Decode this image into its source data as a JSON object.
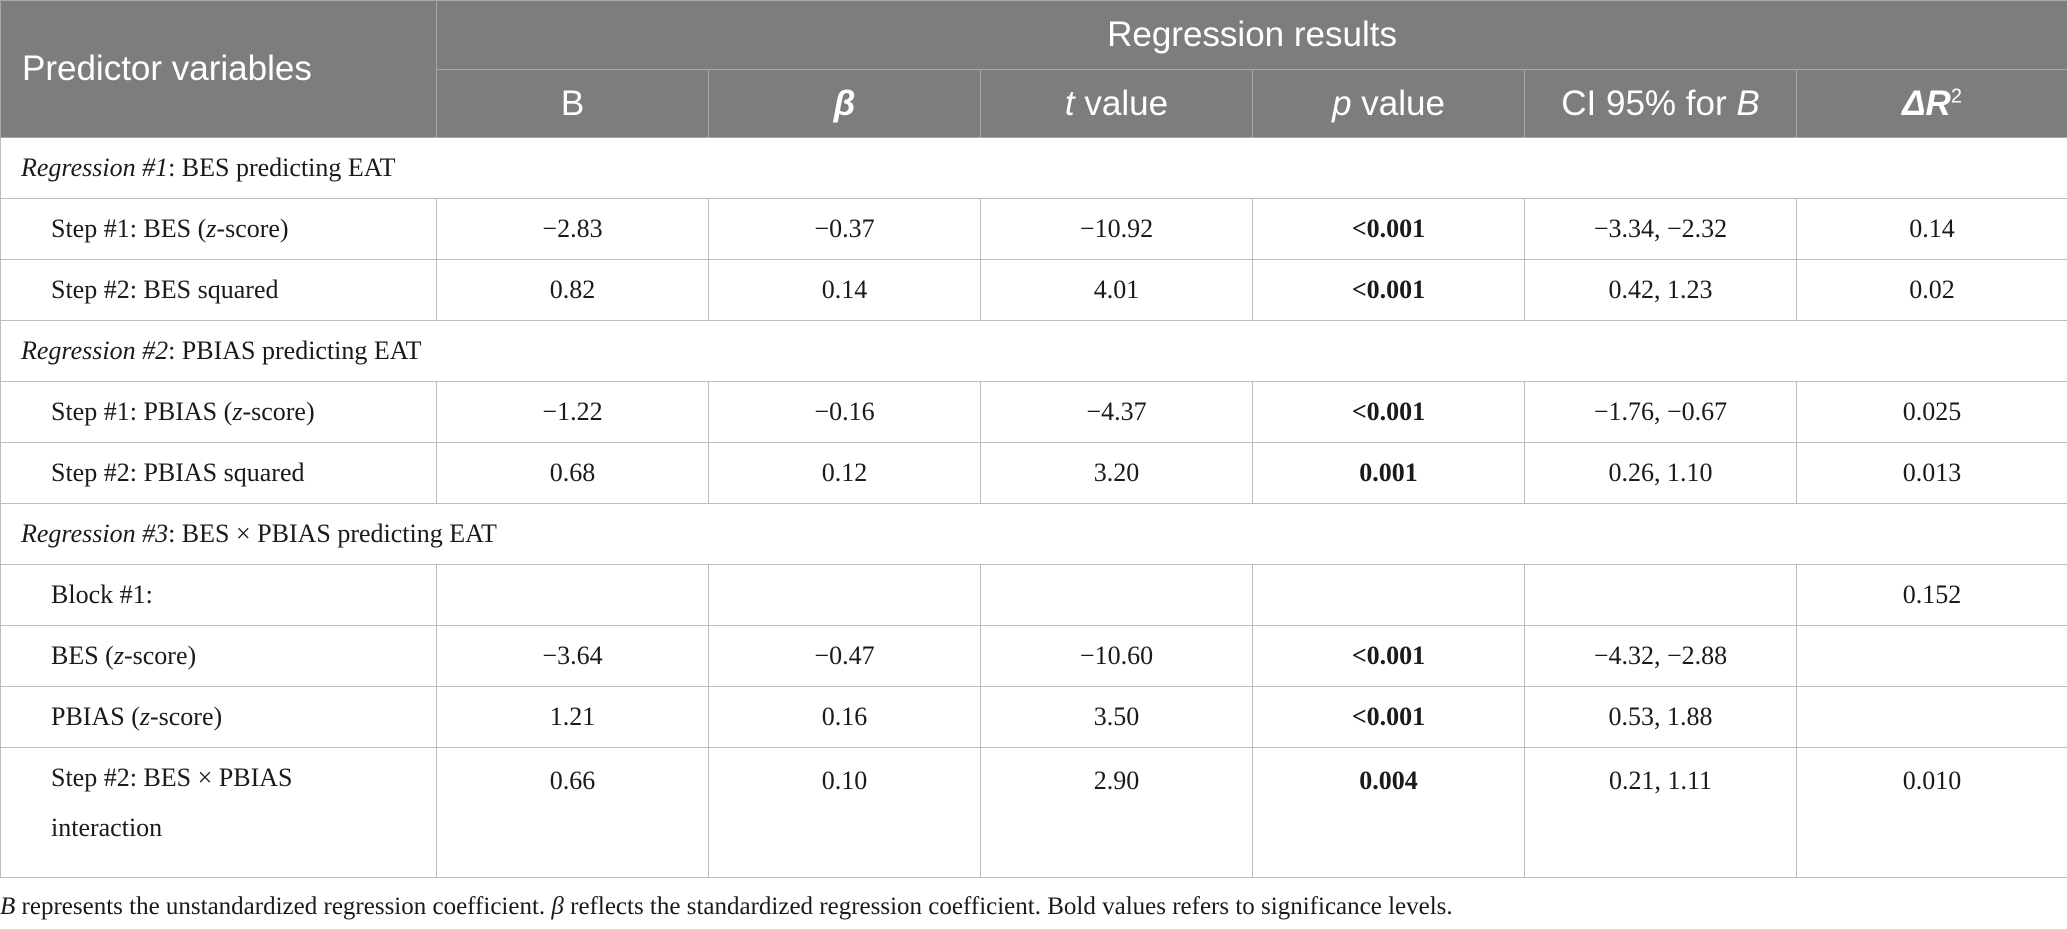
{
  "header": {
    "predictor_label": "Predictor variables",
    "group_label": "Regression results",
    "columns": {
      "b": "B",
      "beta": "β",
      "t_italic": "t",
      "t_rest": " value",
      "p_italic": "p",
      "p_rest": " value",
      "ci_prefix": "CI 95% for ",
      "ci_italic": "B",
      "dr2": "ΔR",
      "dr2_sup": "2"
    }
  },
  "regressions": [
    {
      "title_italic": "Regression #1",
      "title_rest": ": BES predicting EAT",
      "rows": [
        {
          "pre": "Step #1: BES (",
          "ital": "z",
          "post": "-score)",
          "b": "−2.83",
          "beta": "−0.37",
          "t": "−10.92",
          "p": "<0.001",
          "ci": "−3.34, −2.32",
          "dr2": "0.14"
        },
        {
          "pre": "Step #2: BES squared",
          "ital": "",
          "post": "",
          "b": "0.82",
          "beta": "0.14",
          "t": "4.01",
          "p": "<0.001",
          "ci": "0.42, 1.23",
          "dr2": "0.02"
        }
      ]
    },
    {
      "title_italic": "Regression #2",
      "title_rest": ": PBIAS predicting EAT",
      "rows": [
        {
          "pre": "Step #1: PBIAS (",
          "ital": "z",
          "post": "-score)",
          "b": "−1.22",
          "beta": "−0.16",
          "t": "−4.37",
          "p": "<0.001",
          "ci": "−1.76, −0.67",
          "dr2": "0.025"
        },
        {
          "pre": "Step #2: PBIAS squared",
          "ital": "",
          "post": "",
          "b": "0.68",
          "beta": "0.12",
          "t": "3.20",
          "p": "0.001",
          "ci": "0.26, 1.10",
          "dr2": "0.013"
        }
      ]
    },
    {
      "title_italic": "Regression #3",
      "title_rest": ": BES × PBIAS predicting EAT",
      "rows": [
        {
          "pre": "Block #1:",
          "ital": "",
          "post": "",
          "b": "",
          "beta": "",
          "t": "",
          "p": "",
          "ci": "",
          "dr2": "0.152"
        },
        {
          "pre": "BES (",
          "ital": "z",
          "post": "-score)",
          "b": "−3.64",
          "beta": "−0.47",
          "t": "−10.60",
          "p": "<0.001",
          "ci": "−4.32, −2.88",
          "dr2": ""
        },
        {
          "pre": "PBIAS (",
          "ital": "z",
          "post": "-score)",
          "b": "1.21",
          "beta": "0.16",
          "t": "3.50",
          "p": "<0.001",
          "ci": "0.53, 1.88",
          "dr2": ""
        },
        {
          "pre": "Step #2: BES × PBIAS",
          "pre2": "interaction",
          "ital": "",
          "post": "",
          "b": "0.66",
          "beta": "0.10",
          "t": "2.90",
          "p": "0.004",
          "ci": "0.21, 1.11",
          "dr2": "0.010"
        }
      ]
    }
  ],
  "footnote": {
    "s1": "B",
    "t1": " represents the unstandardized regression coefficient. ",
    "s2": "β",
    "t2": " reflects the standardized regression coefficient. Bold values refers to significance levels."
  }
}
